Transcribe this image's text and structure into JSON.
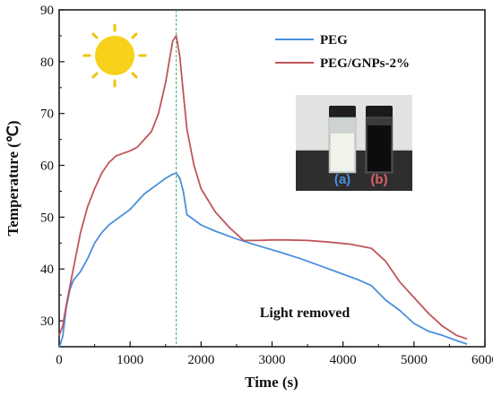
{
  "chart_data": {
    "type": "line",
    "xlabel": "Time (s)",
    "ylabel": "Temperature (℃)",
    "xlim": [
      0,
      6000
    ],
    "ylim": [
      25,
      90
    ],
    "xticks": [
      0,
      1000,
      2000,
      3000,
      4000,
      5000,
      6000
    ],
    "yticks": [
      30,
      40,
      50,
      60,
      70,
      80,
      90
    ],
    "xtick_labels": [
      "0",
      "1000",
      "2000",
      "3000",
      "4000",
      "5000",
      "6000"
    ],
    "ytick_labels": [
      "30",
      "40",
      "50",
      "60",
      "70",
      "80",
      "90"
    ],
    "grid": false,
    "legend_position": "top-right",
    "vertical_marker_x": 1650,
    "annotation": "Light removed",
    "series": [
      {
        "name": "PEG",
        "color": "#4a8fdc",
        "x": [
          0,
          50,
          100,
          150,
          200,
          300,
          400,
          500,
          600,
          700,
          800,
          900,
          1000,
          1100,
          1200,
          1300,
          1400,
          1500,
          1600,
          1650,
          1700,
          1750,
          1800,
          2000,
          2200,
          2500,
          2800,
          3100,
          3400,
          3700,
          4000,
          4200,
          4400,
          4600,
          4800,
          5000,
          5200,
          5400,
          5600,
          5750
        ],
        "y": [
          24.8,
          27,
          32.5,
          36,
          37.8,
          39.5,
          42,
          45,
          47,
          48.5,
          49.5,
          50.5,
          51.5,
          53,
          54.5,
          55.5,
          56.5,
          57.5,
          58.3,
          58.5,
          57.5,
          55,
          50.5,
          48.5,
          47.3,
          45.8,
          44.5,
          43.3,
          42,
          40.5,
          39,
          38,
          36.8,
          34,
          32,
          29.5,
          28,
          27.2,
          26.2,
          25.5
        ]
      },
      {
        "name": "PEG/GNPs-2%",
        "color": "#c0555a",
        "x": [
          0,
          50,
          100,
          200,
          300,
          400,
          500,
          600,
          700,
          800,
          900,
          1000,
          1100,
          1200,
          1300,
          1400,
          1500,
          1550,
          1600,
          1650,
          1700,
          1750,
          1800,
          1900,
          2000,
          2200,
          2400,
          2600,
          2800,
          3000,
          3200,
          3500,
          3800,
          4100,
          4400,
          4600,
          4800,
          5000,
          5200,
          5400,
          5600,
          5750
        ],
        "y": [
          27.2,
          29,
          33,
          40,
          47,
          52,
          55.5,
          58.5,
          60.5,
          61.8,
          62.3,
          62.8,
          63.5,
          65,
          66.5,
          70,
          76,
          80,
          84,
          85,
          81,
          74,
          67,
          60,
          55.5,
          51,
          48,
          45.5,
          45.5,
          45.6,
          45.6,
          45.5,
          45.2,
          44.8,
          44,
          41.5,
          37.5,
          34.5,
          31.5,
          29,
          27.2,
          26.5
        ]
      }
    ]
  },
  "inset": {
    "label_a": "(a)",
    "label_b": "(b)",
    "label_a_color": "#4a8fdc",
    "label_b_color": "#d9606a"
  },
  "icons": {
    "sun": "sun-icon"
  }
}
